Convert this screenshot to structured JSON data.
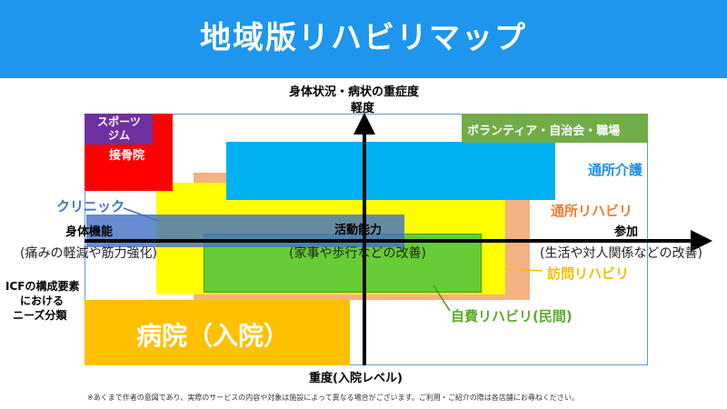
{
  "banner": {
    "title": "地域版リハビリマップ"
  },
  "axes": {
    "top_label_1": "身体状況・病状の重症度",
    "top_label_2": "軽度",
    "bottom_label": "重度(入院レベル)",
    "left_label": "身体機能",
    "left_paren": "(痛みの軽減や筋力強化)",
    "center_label": "活動能力",
    "center_paren": "(家事や歩行などの改善)",
    "right_label": "参加",
    "right_paren": "(生活や対人関係などの改善)"
  },
  "side_note": {
    "line1": "ICFの構成要素",
    "line2": "における",
    "line3": "ニーズ分類"
  },
  "regions": {
    "sports_gym": "スポーツ\nジム",
    "bonesetter": "接骨院",
    "volunteer": "ボランティア・自治会・職場",
    "day_care": "通所介護",
    "day_rehab": "通所リハビリ",
    "clinic": "クリニック",
    "home_rehab": "訪問リハビリ",
    "private_rehab": "自費リハビリ(民間)",
    "hospital": "病院（入院）"
  },
  "colors": {
    "banner": "#1e96ee",
    "sports_gym": "#7030a0",
    "bonesetter": "#ff0000",
    "volunteer": "#70ad47",
    "day_care": "#00b0f0",
    "day_rehab": "#f4b183",
    "clinic": "#4472c4",
    "home_rehab": "#ffff00",
    "private_rehab": "#66cc33",
    "hospital": "#ffc000"
  },
  "footer": {
    "note": "※あくまで作者の意図であり、実際のサービスの内容や対象は施設によって異なる場合がございます。ご利用・ご紹介の際は各店舗にお尋ねください。"
  }
}
